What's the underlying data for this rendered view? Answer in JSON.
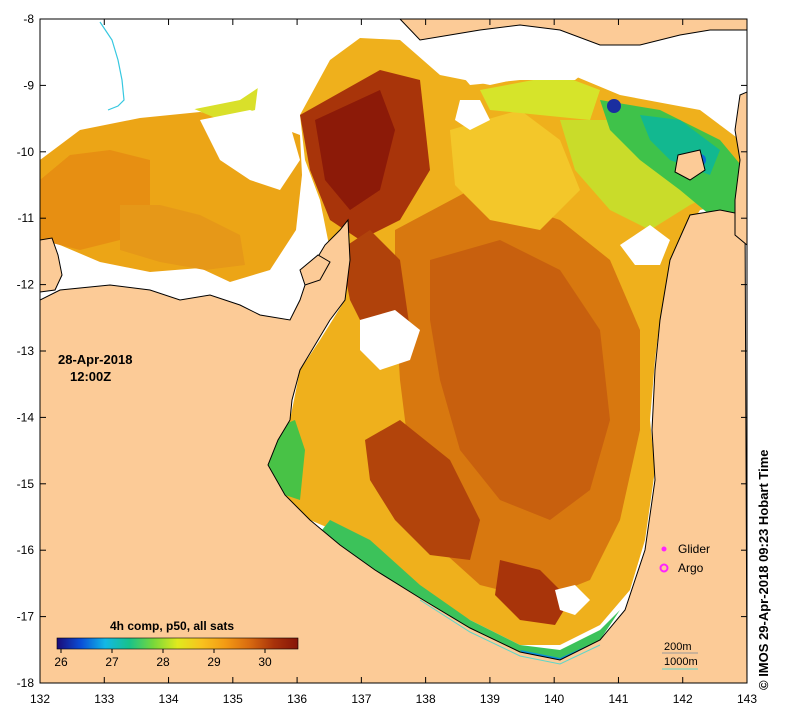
{
  "map": {
    "date": "28-Apr-2018",
    "time": "12:00Z",
    "credit": "© IMOS 29-Apr-2018 09:23 Hobart Time",
    "x_ticks": [
      "132",
      "133",
      "134",
      "135",
      "136",
      "137",
      "138",
      "139",
      "140",
      "141",
      "142",
      "143"
    ],
    "y_ticks": [
      "-8",
      "-9",
      "-10",
      "-11",
      "-12",
      "-13",
      "-14",
      "-15",
      "-16",
      "-17",
      "-18"
    ],
    "colorbar": {
      "title": "4h comp, p50, all sats",
      "ticks": [
        "26",
        "27",
        "28",
        "29",
        "30"
      ],
      "colors": [
        "#1a0a78",
        "#0a4fd8",
        "#12b8e6",
        "#18c28a",
        "#78d83a",
        "#e0ea1e",
        "#f8c21e",
        "#f39a14",
        "#d86a10",
        "#a8320a",
        "#861408"
      ]
    },
    "legend": {
      "glider": "Glider",
      "argo": "Argo",
      "glider_color": "#ff22ff",
      "argo_color": "#ff22ff"
    },
    "depth": {
      "shallow": "200m",
      "deep": "1000m",
      "shallow_color": "#9a9a9a",
      "deep_color": "#5fd6c8"
    },
    "colors": {
      "land": "#fccb97",
      "coast": "#000000",
      "river": "#36c8e0"
    }
  }
}
